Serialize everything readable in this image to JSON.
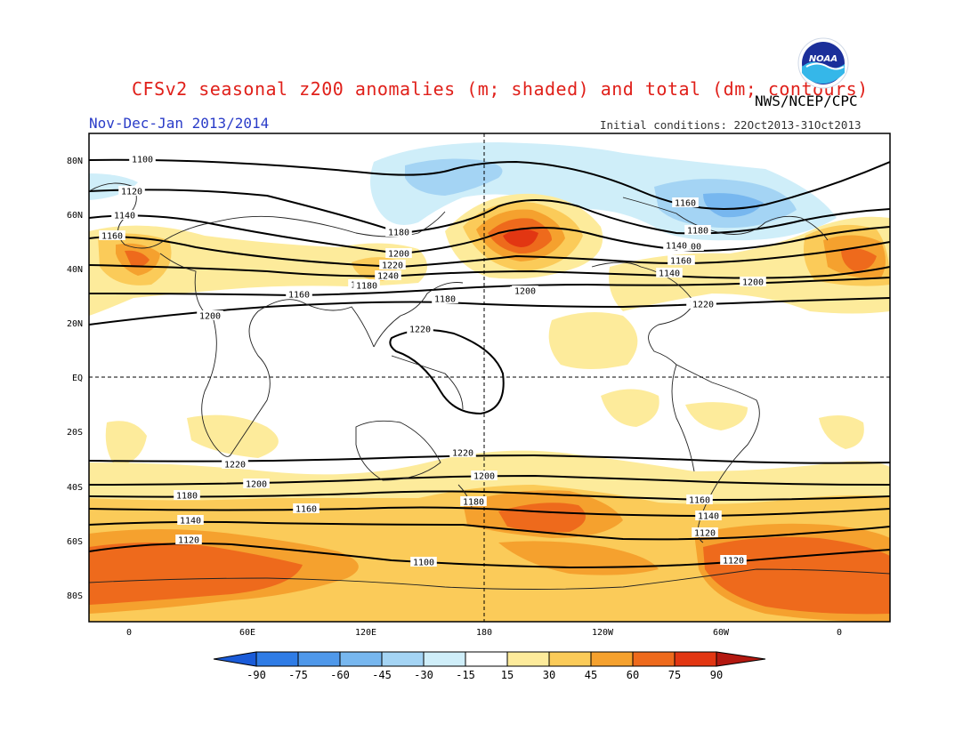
{
  "header": {
    "title": "CFSv2 seasonal z200 anomalies (m; shaded) and total (dm; contours)",
    "source": "NWS/NCEP/CPC",
    "period": "Nov-Dec-Jan 2013/2014",
    "initial_conditions": "Initial conditions: 22Oct2013-31Oct2013",
    "logo_text": "NOAA"
  },
  "map": {
    "lat_labels": [
      "80N",
      "60N",
      "40N",
      "20N",
      "EQ",
      "20S",
      "40S",
      "60S",
      "80S"
    ],
    "lon_labels": [
      "0",
      "60E",
      "120E",
      "180",
      "120W",
      "60W",
      "0"
    ],
    "contour_levels": [
      "1100",
      "1120",
      "1140",
      "1160",
      "1180",
      "1200",
      "1220",
      "1240"
    ],
    "contour_labels": [
      "1100",
      "1120",
      "1140",
      "1160",
      "1180",
      "1200",
      "1220",
      "1240",
      "1140",
      "1160",
      "1180",
      "1100",
      "1120",
      "1140",
      "1160",
      "1180",
      "1200",
      "1220",
      "1200",
      "1220",
      "1220",
      "1200",
      "1180",
      "1160",
      "1140",
      "1120",
      "1220",
      "1200",
      "1180",
      "1160",
      "1140",
      "1120",
      "1100",
      "1120",
      "1140",
      "1160",
      "1180",
      "1200",
      "1220",
      "1200"
    ]
  },
  "colorbar": {
    "ticks": [
      "-90",
      "-75",
      "-60",
      "-45",
      "-30",
      "-15",
      "15",
      "30",
      "45",
      "60",
      "75",
      "90"
    ],
    "colors": [
      "#1a5bd8",
      "#2f7ce6",
      "#4f98ea",
      "#77b7ef",
      "#a4d4f4",
      "#cfeef9",
      "#ffffff",
      "#fdeb9b",
      "#fbcb59",
      "#f5a12e",
      "#ee6a1c",
      "#e23612",
      "#b31810"
    ]
  }
}
